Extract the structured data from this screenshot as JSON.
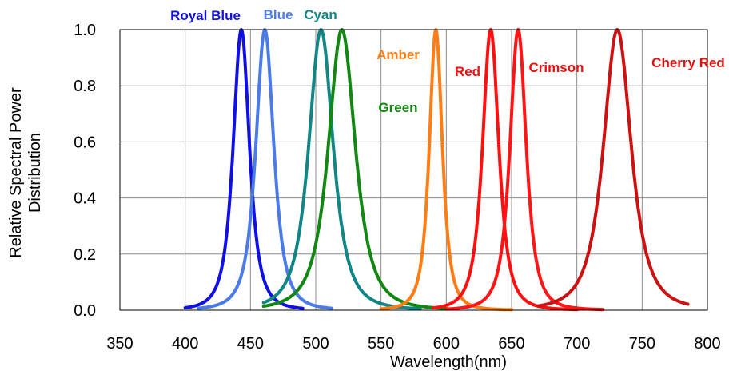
{
  "chart_data": {
    "type": "line",
    "title": "",
    "xlabel": "Wavelength(nm)",
    "ylabel": "Relative Spectral Power Distribution",
    "ylabel_lines": [
      "Relative Spectral Power",
      "Distribution"
    ],
    "xlim": [
      350,
      800
    ],
    "ylim": [
      0.0,
      1.0
    ],
    "x_ticks": [
      350,
      400,
      450,
      500,
      550,
      600,
      650,
      700,
      750,
      800
    ],
    "x_tick_labels": [
      "350",
      "400",
      "450",
      "500",
      "550",
      "600",
      "650",
      "700",
      "750",
      "800"
    ],
    "y_ticks": [
      0.0,
      0.2,
      0.4,
      0.6,
      0.8,
      1.0
    ],
    "y_tick_labels": [
      "0.0",
      "0.2",
      "0.4",
      "0.6",
      "0.8",
      "1.0"
    ],
    "grid": true,
    "legend": "none",
    "series": [
      {
        "name": "Royal Blue",
        "color": "#1010e6",
        "peak": 443,
        "fwhm": 20,
        "range": [
          400,
          490
        ],
        "x": [
          400,
          420,
          430,
          435,
          440,
          443,
          446,
          450,
          455,
          460,
          470,
          480,
          490
        ],
        "y": [
          0.01,
          0.17,
          0.44,
          0.68,
          0.92,
          1.0,
          0.94,
          0.68,
          0.4,
          0.23,
          0.09,
          0.04,
          0.01
        ]
      },
      {
        "name": "Blue",
        "color": "#4a7be8",
        "peak": 461,
        "fwhm": 22,
        "range": [
          410,
          512
        ],
        "x": [
          410,
          430,
          445,
          452,
          458,
          461,
          465,
          470,
          480,
          490,
          500,
          512
        ],
        "y": [
          0.0,
          0.07,
          0.36,
          0.66,
          0.94,
          1.0,
          0.92,
          0.7,
          0.34,
          0.16,
          0.07,
          0.01
        ]
      },
      {
        "name": "Cyan",
        "color": "#128585",
        "peak": 504,
        "fwhm": 30,
        "range": [
          460,
          580
        ],
        "x": [
          460,
          480,
          490,
          497,
          501,
          504,
          508,
          515,
          525,
          540,
          555,
          580
        ],
        "y": [
          0.01,
          0.2,
          0.5,
          0.83,
          0.97,
          1.0,
          0.96,
          0.75,
          0.44,
          0.18,
          0.08,
          0.01
        ]
      },
      {
        "name": "Green",
        "color": "#128812",
        "peak": 520,
        "fwhm": 33,
        "range": [
          460,
          600
        ],
        "x": [
          460,
          480,
          495,
          505,
          513,
          520,
          527,
          535,
          550,
          565,
          580,
          600
        ],
        "y": [
          0.01,
          0.1,
          0.34,
          0.62,
          0.9,
          1.0,
          0.93,
          0.72,
          0.38,
          0.18,
          0.08,
          0.02
        ]
      },
      {
        "name": "Amber",
        "color": "#ff7d15",
        "peak": 592,
        "fwhm": 16,
        "range": [
          550,
          650
        ],
        "x": [
          550,
          570,
          580,
          586,
          590,
          592,
          594,
          598,
          605,
          615,
          630,
          650
        ],
        "y": [
          0.01,
          0.12,
          0.38,
          0.72,
          0.96,
          1.0,
          0.97,
          0.75,
          0.38,
          0.11,
          0.03,
          0.01
        ]
      },
      {
        "name": "Red",
        "color": "#ff1010",
        "peak": 634,
        "fwhm": 20,
        "range": [
          590,
          700
        ],
        "x": [
          590,
          605,
          615,
          624,
          630,
          634,
          638,
          645,
          655,
          670,
          685,
          700
        ],
        "y": [
          0.01,
          0.09,
          0.3,
          0.63,
          0.92,
          1.0,
          0.93,
          0.58,
          0.26,
          0.08,
          0.02,
          0.01
        ]
      },
      {
        "name": "Crimson",
        "color": "#ff1515",
        "peak": 655,
        "fwhm": 20,
        "range": [
          600,
          720
        ],
        "x": [
          600,
          620,
          635,
          645,
          651,
          655,
          659,
          666,
          675,
          690,
          705,
          720
        ],
        "y": [
          0.0,
          0.04,
          0.22,
          0.57,
          0.9,
          1.0,
          0.92,
          0.6,
          0.3,
          0.09,
          0.02,
          0.01
        ]
      },
      {
        "name": "Cherry Red",
        "color": "#cc1111",
        "peak": 731,
        "fwhm": 34,
        "range": [
          670,
          785
        ],
        "x": [
          670,
          690,
          705,
          715,
          725,
          731,
          737,
          745,
          755,
          765,
          775,
          785
        ],
        "y": [
          0.01,
          0.08,
          0.24,
          0.5,
          0.86,
          1.0,
          0.9,
          0.6,
          0.3,
          0.13,
          0.05,
          0.01
        ]
      }
    ],
    "series_labels": [
      {
        "text": "Royal Blue",
        "color": "#1212e0"
      },
      {
        "text": "Blue",
        "color": "#4a7be8"
      },
      {
        "text": "Cyan",
        "color": "#128585"
      },
      {
        "text": "Amber",
        "color": "#ff7d15"
      },
      {
        "text": "Green",
        "color": "#128812"
      },
      {
        "text": "Red",
        "color": "#ee1010"
      },
      {
        "text": "Crimson",
        "color": "#ee1010"
      },
      {
        "text": "Cherry Red",
        "color": "#dd1010"
      }
    ]
  }
}
